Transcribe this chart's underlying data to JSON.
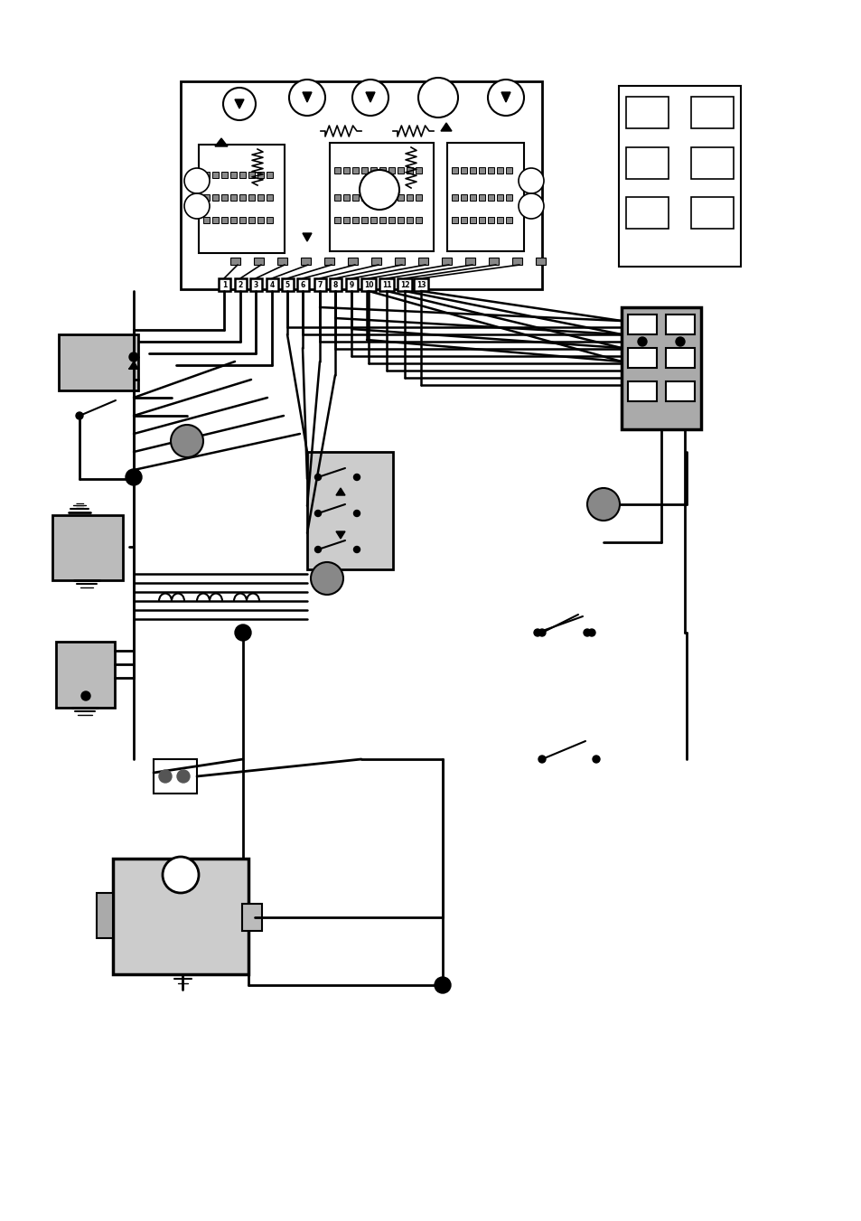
{
  "bg_color": "#ffffff",
  "line_color": "#000000",
  "gray_light": "#cccccc",
  "gray_med": "#999999",
  "gray_dark": "#666666",
  "figsize": [
    9.54,
    13.51
  ],
  "dpi": 100,
  "title": ""
}
